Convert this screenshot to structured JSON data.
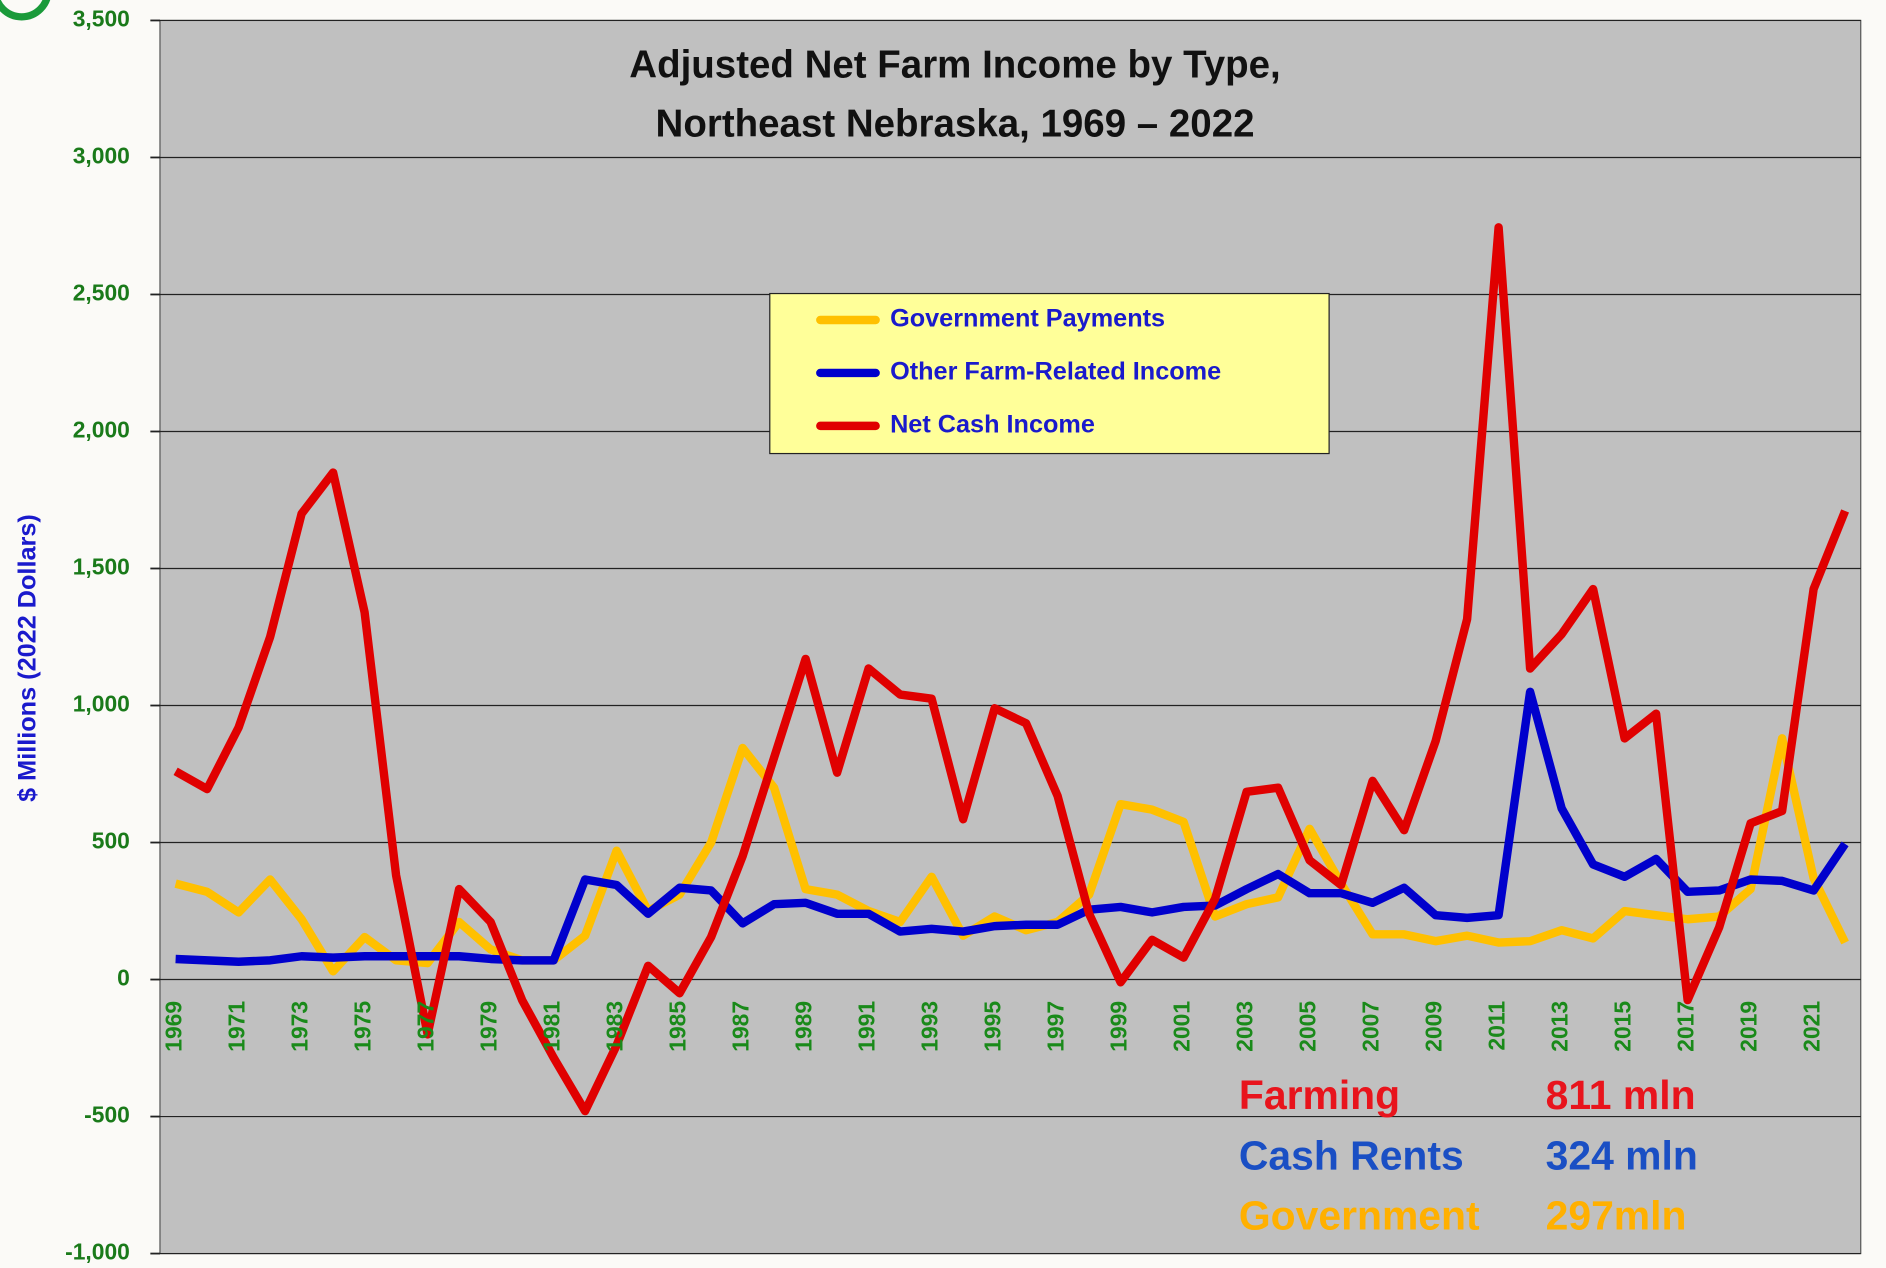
{
  "chart_data": {
    "type": "line",
    "title": [
      "Adjusted Net Farm Income by Type,",
      "Northeast Nebraska, 1969 – 2022"
    ],
    "y_label": "$ Millions (2022 Dollars)",
    "categories": [
      "1969",
      null,
      "1971",
      null,
      "1973",
      null,
      "1975",
      null,
      "1977",
      null,
      "1979",
      null,
      "1981",
      null,
      "1983",
      null,
      "1985",
      null,
      "1987",
      null,
      "1989",
      null,
      "1991",
      null,
      "1993",
      null,
      "1995",
      null,
      "1997",
      null,
      "1999",
      null,
      "2001",
      null,
      "2003",
      null,
      "2005",
      null,
      "2007",
      null,
      "2009",
      null,
      "2011",
      null,
      "2013",
      null,
      "2015",
      null,
      "2017",
      null,
      "2019",
      null,
      "2021",
      null
    ],
    "series": [
      {
        "name": "Government Payments",
        "color": "#ffc000",
        "values": [
          350,
          320,
          245,
          365,
          220,
          30,
          155,
          70,
          60,
          210,
          110,
          70,
          70,
          160,
          470,
          250,
          310,
          500,
          845,
          700,
          330,
          310,
          250,
          210,
          375,
          160,
          230,
          180,
          210,
          310,
          640,
          620,
          575,
          230,
          275,
          300,
          550,
          350,
          165,
          165,
          140,
          160,
          135,
          140,
          180,
          150,
          250,
          235,
          220,
          230,
          330,
          880,
          370,
          135
        ]
      },
      {
        "name": "Other Farm-Related Income",
        "color": "#0000cc",
        "values": [
          75,
          70,
          65,
          70,
          85,
          80,
          85,
          85,
          85,
          85,
          75,
          70,
          70,
          365,
          345,
          240,
          335,
          325,
          205,
          275,
          280,
          240,
          240,
          175,
          185,
          175,
          195,
          200,
          200,
          255,
          265,
          245,
          265,
          270,
          330,
          385,
          315,
          315,
          280,
          335,
          235,
          225,
          235,
          1050,
          625,
          420,
          375,
          440,
          320,
          325,
          365,
          360,
          325,
          495
        ]
      },
      {
        "name": "Net Cash Income",
        "color": "#e00000",
        "values": [
          760,
          695,
          920,
          1250,
          1700,
          1850,
          1340,
          380,
          -200,
          330,
          210,
          -75,
          -285,
          -480,
          -240,
          50,
          -50,
          155,
          450,
          810,
          1170,
          755,
          1135,
          1040,
          1025,
          585,
          990,
          935,
          670,
          240,
          -10,
          145,
          80,
          295,
          685,
          700,
          435,
          345,
          725,
          545,
          870,
          1315,
          2745,
          1135,
          1260,
          1425,
          880,
          970,
          -75,
          190,
          570,
          615,
          1425,
          1710
        ]
      }
    ],
    "ylim": [
      -1000,
      3500
    ],
    "yticks": [
      {
        "value": -1000,
        "label": "-1,000"
      },
      -500,
      0,
      500,
      {
        "value": 1000,
        "label": "1,000"
      },
      {
        "value": 1500,
        "label": "1,500"
      },
      {
        "value": 2000,
        "label": "2,000"
      },
      {
        "value": 2500,
        "label": "2,500"
      },
      {
        "value": 3000,
        "label": "3,000"
      },
      {
        "value": 3500,
        "label": "3,500"
      }
    ],
    "grid": true,
    "legend": "upper center",
    "annotations": [
      {
        "label": "Farming",
        "text": "811 mln",
        "color": "#e8141c"
      },
      {
        "label": "Cash Rents",
        "text": "324 mln",
        "color": "#1a4fc4"
      },
      {
        "label": "Government",
        "text": "297mln",
        "color": "#ffb000"
      }
    ]
  }
}
